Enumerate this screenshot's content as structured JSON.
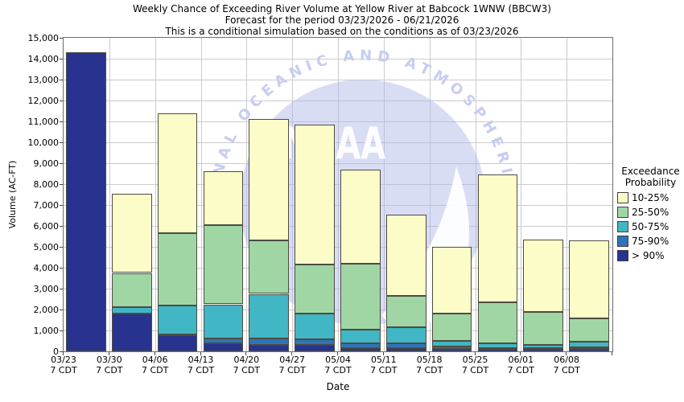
{
  "title": {
    "line1": "Weekly Chance of Exceeding River Volume at Yellow River at Babcock 1WNW (BBCW3)",
    "line2": "Forecast for the period 03/23/2026 - 06/21/2026",
    "line3": "This is a conditional simulation based on the conditions as of 03/23/2026"
  },
  "y_axis": {
    "title": "Volume (AC-FT)",
    "min": 0,
    "max": 15000,
    "tick_step": 1000,
    "tick_labels": [
      "0",
      "1,000",
      "2,000",
      "3,000",
      "4,000",
      "5,000",
      "6,000",
      "7,000",
      "8,000",
      "9,000",
      "10,000",
      "11,000",
      "12,000",
      "13,000",
      "14,000",
      "15,000"
    ]
  },
  "x_axis": {
    "title": "Date",
    "tick_line2": "7 CDT",
    "dates": [
      "03/23",
      "03/30",
      "04/06",
      "04/13",
      "04/20",
      "04/27",
      "05/04",
      "05/11",
      "05/18",
      "05/25",
      "06/01",
      "06/08"
    ]
  },
  "legend": {
    "title_line1": "Exceedance",
    "title_line2": "Probability",
    "entries": [
      {
        "label": "10-25%",
        "color": "#FCFCC8"
      },
      {
        "label": "25-50%",
        "color": "#A0D6A4"
      },
      {
        "label": "50-75%",
        "color": "#41B6C4"
      },
      {
        "label": "75-90%",
        "color": "#2E74B8"
      },
      {
        "label": "> 90%",
        "color": "#27338F"
      }
    ]
  },
  "watermark": {
    "ring_text": "NATIONAL OCEANIC AND ATMOSPHERIC ADMINISTRATION",
    "center_text": "NOAA"
  },
  "chart_data": {
    "type": "bar",
    "stacked": true,
    "title": "Weekly Chance of Exceeding River Volume at Yellow River at Babcock 1WNW (BBCW3)",
    "xlabel": "Date",
    "ylabel": "Volume (AC-FT)",
    "unit": "AC-FT",
    "ylim": [
      0,
      15000
    ],
    "grid": true,
    "legend_position": "right",
    "value_semantics": "cumulative_volume[i] is the stack top (volume, AC-FT) of each exceedance band for week i; bands stack bottom-up from > 90% to 10-25%",
    "categories": [
      "03/23",
      "03/30",
      "04/06",
      "04/13",
      "04/20",
      "04/27",
      "05/04",
      "05/11",
      "05/18",
      "05/25",
      "06/01",
      "06/08"
    ],
    "series": [
      {
        "name": "10-25%",
        "color": "#FCFCC8",
        "cumulative_volume": [
          14300,
          7550,
          11400,
          8600,
          11100,
          10850,
          8700,
          6550,
          5000,
          8450,
          5350,
          5300
        ]
      },
      {
        "name": "25-50%",
        "color": "#A0D6A4",
        "cumulative_volume": [
          14300,
          3750,
          5650,
          6050,
          5300,
          4150,
          4200,
          2650,
          1820,
          2360,
          1900,
          1580
        ]
      },
      {
        "name": "50-75%",
        "color": "#41B6C4",
        "cumulative_volume": [
          14300,
          2100,
          2200,
          2250,
          2750,
          1800,
          1020,
          1170,
          490,
          380,
          300,
          460
        ]
      },
      {
        "name": "75-90%",
        "color": "#2E74B8",
        "cumulative_volume": [
          14300,
          1800,
          800,
          620,
          610,
          590,
          370,
          400,
          230,
          160,
          160,
          180
        ]
      },
      {
        "name": "> 90%",
        "color": "#27338F",
        "cumulative_volume": [
          14300,
          1800,
          780,
          390,
          290,
          300,
          150,
          150,
          110,
          140,
          140,
          110
        ]
      }
    ]
  }
}
